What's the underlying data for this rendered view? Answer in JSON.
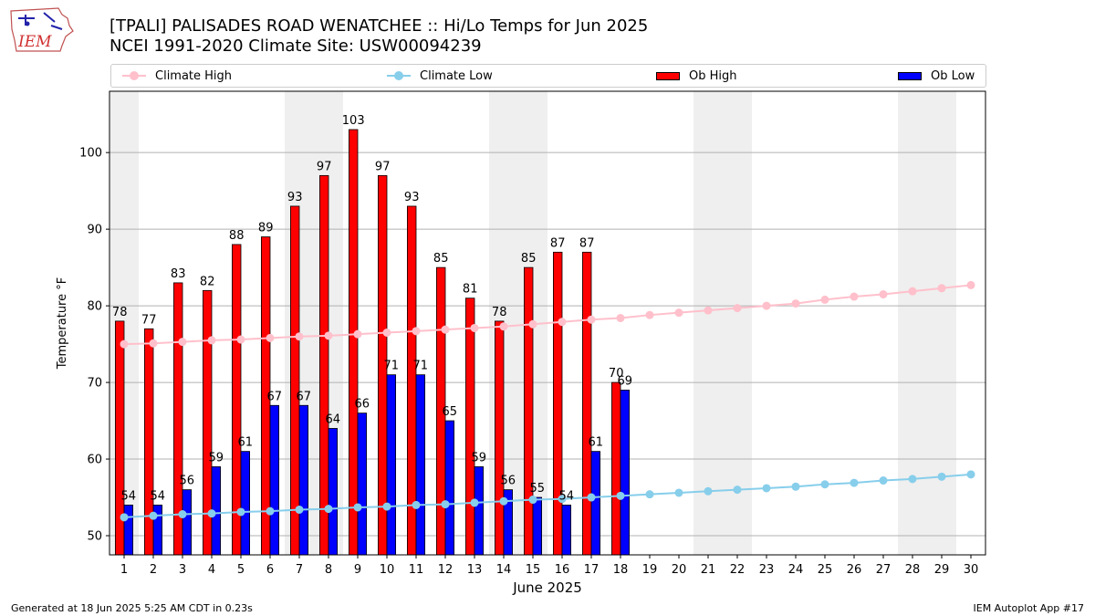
{
  "header": {
    "title_line1": "[TPALI] PALISADES ROAD WENATCHEE  :: Hi/Lo Temps for Jun 2025",
    "title_line2": "NCEI 1991-2020 Climate Site: USW00094239"
  },
  "logo": {
    "text": "IEM"
  },
  "footer": {
    "left": "Generated at 18 Jun 2025 5:25 AM CDT in 0.23s",
    "right": "IEM Autoplot App #17"
  },
  "colors": {
    "ob_high": "#ff0000",
    "ob_low": "#0000ff",
    "climate_high": "#ffc0cb",
    "climate_low": "#87ceeb",
    "weekend_band": "#efefef",
    "grid": "#b0b0b0"
  },
  "chart_data": {
    "type": "bar",
    "xlabel": "June 2025",
    "ylabel": "Temperature °F",
    "ylim": [
      47.5,
      108
    ],
    "yticks": [
      50,
      60,
      70,
      80,
      90,
      100
    ],
    "grid": "horizontal",
    "legend_position": "top",
    "categories": [
      "1",
      "2",
      "3",
      "4",
      "5",
      "6",
      "7",
      "8",
      "9",
      "10",
      "11",
      "12",
      "13",
      "14",
      "15",
      "16",
      "17",
      "18",
      "19",
      "20",
      "21",
      "22",
      "23",
      "24",
      "25",
      "26",
      "27",
      "28",
      "29",
      "30"
    ],
    "weekend_bands": [
      [
        1,
        1
      ],
      [
        7,
        8
      ],
      [
        14,
        15
      ],
      [
        21,
        22
      ],
      [
        28,
        29
      ]
    ],
    "series": [
      {
        "name": "Climate High",
        "kind": "line",
        "values": [
          75.0,
          75.1,
          75.3,
          75.5,
          75.6,
          75.8,
          76.0,
          76.1,
          76.3,
          76.5,
          76.7,
          76.9,
          77.1,
          77.3,
          77.6,
          77.9,
          78.2,
          78.4,
          78.8,
          79.1,
          79.4,
          79.7,
          80.0,
          80.3,
          80.8,
          81.2,
          81.5,
          81.9,
          82.3,
          82.7
        ]
      },
      {
        "name": "Climate Low",
        "kind": "line",
        "values": [
          52.4,
          52.6,
          52.8,
          52.9,
          53.1,
          53.2,
          53.4,
          53.5,
          53.7,
          53.8,
          54.0,
          54.1,
          54.3,
          54.5,
          54.7,
          54.8,
          55.0,
          55.2,
          55.4,
          55.6,
          55.8,
          56.0,
          56.2,
          56.4,
          56.7,
          56.9,
          57.2,
          57.4,
          57.7,
          58.0
        ]
      },
      {
        "name": "Ob High",
        "kind": "bar",
        "values": [
          78,
          77,
          83,
          82,
          88,
          89,
          93,
          97,
          103,
          97,
          93,
          85,
          81,
          78,
          85,
          87,
          87,
          70,
          null,
          null,
          null,
          null,
          null,
          null,
          null,
          null,
          null,
          null,
          null,
          null
        ]
      },
      {
        "name": "Ob Low",
        "kind": "bar",
        "values": [
          54,
          54,
          56,
          59,
          61,
          67,
          67,
          64,
          66,
          71,
          71,
          65,
          59,
          56,
          55,
          54,
          61,
          69,
          null,
          null,
          null,
          null,
          null,
          null,
          null,
          null,
          null,
          null,
          null,
          null
        ]
      }
    ]
  }
}
